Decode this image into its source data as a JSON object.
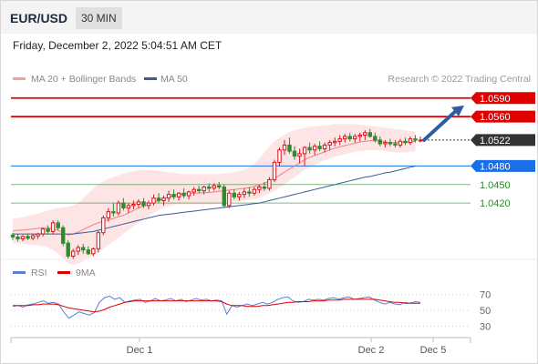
{
  "header": {
    "pair": "EUR/USD",
    "timeframe": "30 MIN"
  },
  "date_line": "Friday, December 2, 2022 5:04:51 AM CET",
  "chart_data": [
    {
      "type": "candlestick",
      "title": "",
      "legend": [
        {
          "name": "MA 20 + Bollinger Bands",
          "color": "#f4a0a0"
        },
        {
          "name": "MA 50",
          "color": "#3b5b9a"
        }
      ],
      "credit": "Research © 2022 Trading Central",
      "xlabels": [
        "Dec 1",
        "Dec 2",
        "Dec 5"
      ],
      "ylim": [
        1.032,
        1.06
      ],
      "levels": [
        {
          "value": "1.0590",
          "color": "#e00000",
          "style": "box"
        },
        {
          "value": "1.0560",
          "color": "#e00000",
          "style": "box"
        },
        {
          "value": "1.0522",
          "color": "#333333",
          "style": "box-current"
        },
        {
          "value": "1.0480",
          "color": "#1a6ee8",
          "style": "box"
        },
        {
          "value": "1.0450",
          "color": "#2e8b2e",
          "style": "text"
        },
        {
          "value": "1.0420",
          "color": "#2e8b2e",
          "style": "text"
        }
      ],
      "current": 1.0522,
      "ma20": [
        1.0375,
        1.0376,
        1.0376,
        1.0377,
        1.0378,
        1.0379,
        1.038,
        1.038,
        1.0378,
        1.0376,
        1.0372,
        1.0368,
        1.037,
        1.0373,
        1.0377,
        1.0381,
        1.0385,
        1.0388,
        1.0391,
        1.0393,
        1.0395,
        1.0398,
        1.04,
        1.0404,
        1.0408,
        1.0412,
        1.0415,
        1.0418,
        1.0421,
        1.0424,
        1.0427,
        1.043,
        1.0433,
        1.0434,
        1.0435,
        1.0436,
        1.0436,
        1.0436,
        1.0437,
        1.0437,
        1.0438,
        1.0439,
        1.044,
        1.0441,
        1.0442,
        1.0443,
        1.0444,
        1.0445,
        1.0447,
        1.0449,
        1.0452,
        1.0456,
        1.046,
        1.0465,
        1.047,
        1.0475,
        1.048,
        1.0485,
        1.049,
        1.0494,
        1.0497,
        1.05,
        1.0503,
        1.0506,
        1.0509,
        1.0511,
        1.0513,
        1.0515,
        1.0517,
        1.0519,
        1.052,
        1.0521,
        1.0521,
        1.052,
        1.0519,
        1.0518,
        1.0518,
        1.0518,
        1.0518,
        1.0519,
        1.052
      ],
      "ma50": [
        1.037,
        1.037,
        1.037,
        1.037,
        1.037,
        1.037,
        1.037,
        1.037,
        1.037,
        1.037,
        1.037,
        1.037,
        1.037,
        1.0371,
        1.0372,
        1.0373,
        1.0374,
        1.0376,
        1.0378,
        1.038,
        1.0382,
        1.0384,
        1.0386,
        1.0388,
        1.039,
        1.0392,
        1.0394,
        1.0396,
        1.0398,
        1.04,
        1.0401,
        1.0402,
        1.0403,
        1.0404,
        1.0405,
        1.0406,
        1.0407,
        1.0408,
        1.0409,
        1.041,
        1.0411,
        1.0412,
        1.0413,
        1.0414,
        1.0415,
        1.0416,
        1.0417,
        1.0418,
        1.0419,
        1.042,
        1.0422,
        1.0424,
        1.0426,
        1.0428,
        1.043,
        1.0432,
        1.0434,
        1.0436,
        1.0438,
        1.044,
        1.0442,
        1.0444,
        1.0446,
        1.0448,
        1.045,
        1.0452,
        1.0454,
        1.0456,
        1.0458,
        1.046,
        1.0462,
        1.0463,
        1.0465,
        1.0467,
        1.0469,
        1.047,
        1.0472,
        1.0474,
        1.0476,
        1.0478,
        1.048
      ],
      "bb_upper": [
        1.0395,
        1.0396,
        1.0397,
        1.0399,
        1.0401,
        1.0403,
        1.0405,
        1.0408,
        1.041,
        1.0412,
        1.0413,
        1.0414,
        1.0416,
        1.042,
        1.0428,
        1.0436,
        1.0444,
        1.045,
        1.0455,
        1.0459,
        1.0462,
        1.0465,
        1.0468,
        1.047,
        1.0472,
        1.0473,
        1.0474,
        1.0474,
        1.0473,
        1.0472,
        1.0471,
        1.047,
        1.0469,
        1.0468,
        1.0467,
        1.0467,
        1.0467,
        1.0467,
        1.0467,
        1.0467,
        1.0467,
        1.0467,
        1.0468,
        1.0469,
        1.047,
        1.0472,
        1.0474,
        1.0477,
        1.0483,
        1.0492,
        1.0502,
        1.0512,
        1.052,
        1.0526,
        1.0531,
        1.0535,
        1.0538,
        1.054,
        1.0542,
        1.0543,
        1.0544,
        1.0545,
        1.0546,
        1.0547,
        1.0548,
        1.0548,
        1.0548,
        1.0548,
        1.0548,
        1.0547,
        1.0546,
        1.0545,
        1.0544,
        1.0543,
        1.0542,
        1.0541,
        1.054,
        1.0539,
        1.0538,
        1.0537,
        1.0536
      ],
      "bb_lower": [
        1.0355,
        1.0355,
        1.0354,
        1.0353,
        1.0352,
        1.0351,
        1.035,
        1.0348,
        1.0344,
        1.0338,
        1.033,
        1.0322,
        1.032,
        1.0322,
        1.0326,
        1.033,
        1.0335,
        1.034,
        1.0346,
        1.0352,
        1.0358,
        1.0364,
        1.037,
        1.0376,
        1.0382,
        1.0388,
        1.0394,
        1.0399,
        1.0404,
        1.0408,
        1.0412,
        1.0415,
        1.0417,
        1.0418,
        1.0418,
        1.0418,
        1.0418,
        1.0418,
        1.0418,
        1.0418,
        1.0418,
        1.0419,
        1.042,
        1.0421,
        1.0422,
        1.0423,
        1.0424,
        1.0425,
        1.0426,
        1.0428,
        1.0432,
        1.0436,
        1.044,
        1.0445,
        1.045,
        1.0456,
        1.0462,
        1.0468,
        1.0474,
        1.0478,
        1.0482,
        1.0486,
        1.0489,
        1.0492,
        1.0495,
        1.0497,
        1.0499,
        1.0501,
        1.0503,
        1.0504,
        1.0505,
        1.0506,
        1.0506,
        1.0505,
        1.0504,
        1.0503,
        1.0502,
        1.0502,
        1.0502,
        1.0503,
        1.0504
      ],
      "candles": [
        [
          1.0368,
          1.0372,
          1.036,
          1.0365
        ],
        [
          1.0365,
          1.037,
          1.0358,
          1.0362
        ],
        [
          1.0362,
          1.0368,
          1.0358,
          1.0366
        ],
        [
          1.0366,
          1.0371,
          1.036,
          1.0363
        ],
        [
          1.0363,
          1.0369,
          1.036,
          1.0367
        ],
        [
          1.0367,
          1.0372,
          1.0362,
          1.037
        ],
        [
          1.037,
          1.038,
          1.0366,
          1.0378
        ],
        [
          1.0378,
          1.0384,
          1.037,
          1.0374
        ],
        [
          1.0374,
          1.0392,
          1.037,
          1.0388
        ],
        [
          1.0388,
          1.0392,
          1.0376,
          1.038
        ],
        [
          1.038,
          1.0384,
          1.035,
          1.0355
        ],
        [
          1.0355,
          1.036,
          1.033,
          1.0334
        ],
        [
          1.0334,
          1.0346,
          1.0328,
          1.0342
        ],
        [
          1.0342,
          1.0352,
          1.0336,
          1.0348
        ],
        [
          1.0348,
          1.0354,
          1.0338,
          1.0344
        ],
        [
          1.0344,
          1.035,
          1.0336,
          1.0338
        ],
        [
          1.0338,
          1.0348,
          1.0334,
          1.0346
        ],
        [
          1.0346,
          1.0375,
          1.034,
          1.0372
        ],
        [
          1.0372,
          1.04,
          1.0368,
          1.0396
        ],
        [
          1.0396,
          1.0412,
          1.039,
          1.0406
        ],
        [
          1.0406,
          1.042,
          1.0398,
          1.0404
        ],
        [
          1.0404,
          1.0424,
          1.04,
          1.042
        ],
        [
          1.042,
          1.0428,
          1.0408,
          1.0412
        ],
        [
          1.0412,
          1.042,
          1.0404,
          1.0416
        ],
        [
          1.0416,
          1.0424,
          1.041,
          1.0418
        ],
        [
          1.0418,
          1.0426,
          1.0412,
          1.0422
        ],
        [
          1.0422,
          1.0428,
          1.0412,
          1.0416
        ],
        [
          1.0416,
          1.0424,
          1.041,
          1.042
        ],
        [
          1.042,
          1.0434,
          1.0416,
          1.0428
        ],
        [
          1.0428,
          1.0436,
          1.042,
          1.0424
        ],
        [
          1.0424,
          1.0432,
          1.0416,
          1.0428
        ],
        [
          1.0428,
          1.044,
          1.0422,
          1.0434
        ],
        [
          1.0434,
          1.0442,
          1.0426,
          1.043
        ],
        [
          1.043,
          1.0438,
          1.0424,
          1.0436
        ],
        [
          1.0436,
          1.0444,
          1.0428,
          1.0432
        ],
        [
          1.0432,
          1.044,
          1.0426,
          1.0438
        ],
        [
          1.0438,
          1.0446,
          1.0432,
          1.0442
        ],
        [
          1.0442,
          1.0448,
          1.0436,
          1.044
        ],
        [
          1.044,
          1.0448,
          1.0434,
          1.0446
        ],
        [
          1.0446,
          1.0452,
          1.0438,
          1.0444
        ],
        [
          1.0444,
          1.0452,
          1.044,
          1.0448
        ],
        [
          1.0448,
          1.0454,
          1.0442,
          1.0446
        ],
        [
          1.0446,
          1.045,
          1.0412,
          1.0416
        ],
        [
          1.0416,
          1.044,
          1.0412,
          1.0436
        ],
        [
          1.0436,
          1.0442,
          1.0426,
          1.043
        ],
        [
          1.043,
          1.0438,
          1.0424,
          1.0434
        ],
        [
          1.0434,
          1.0444,
          1.0428,
          1.0438
        ],
        [
          1.0438,
          1.0446,
          1.043,
          1.0436
        ],
        [
          1.0436,
          1.0446,
          1.0432,
          1.0442
        ],
        [
          1.0442,
          1.045,
          1.0436,
          1.0446
        ],
        [
          1.0446,
          1.0454,
          1.044,
          1.0444
        ],
        [
          1.0444,
          1.0462,
          1.044,
          1.0458
        ],
        [
          1.0458,
          1.049,
          1.0454,
          1.0486
        ],
        [
          1.0486,
          1.051,
          1.048,
          1.0506
        ],
        [
          1.0506,
          1.0522,
          1.0498,
          1.0514
        ],
        [
          1.0514,
          1.0526,
          1.05,
          1.0504
        ],
        [
          1.0504,
          1.0512,
          1.049,
          1.0496
        ],
        [
          1.0496,
          1.0508,
          1.0484,
          1.05
        ],
        [
          1.05,
          1.0512,
          1.048,
          1.051
        ],
        [
          1.051,
          1.0518,
          1.05,
          1.0506
        ],
        [
          1.0506,
          1.0516,
          1.0498,
          1.0512
        ],
        [
          1.0512,
          1.052,
          1.0504,
          1.0508
        ],
        [
          1.0508,
          1.0518,
          1.0502,
          1.0514
        ],
        [
          1.0514,
          1.0522,
          1.0506,
          1.0518
        ],
        [
          1.0518,
          1.0526,
          1.0512,
          1.052
        ],
        [
          1.052,
          1.053,
          1.0514,
          1.0524
        ],
        [
          1.0524,
          1.0532,
          1.0518,
          1.0528
        ],
        [
          1.0528,
          1.0534,
          1.052,
          1.0524
        ],
        [
          1.0524,
          1.0532,
          1.0518,
          1.0528
        ],
        [
          1.0528,
          1.0534,
          1.052,
          1.053
        ],
        [
          1.053,
          1.0538,
          1.0522,
          1.0534
        ],
        [
          1.0534,
          1.054,
          1.0526,
          1.0528
        ],
        [
          1.0528,
          1.0534,
          1.0518,
          1.0522
        ],
        [
          1.0522,
          1.0528,
          1.0512,
          1.0516
        ],
        [
          1.0516,
          1.0522,
          1.051,
          1.0518
        ],
        [
          1.0518,
          1.0524,
          1.0512,
          1.0516
        ],
        [
          1.0516,
          1.0522,
          1.051,
          1.0514
        ],
        [
          1.0514,
          1.0524,
          1.051,
          1.052
        ],
        [
          1.052,
          1.0526,
          1.0514,
          1.0518
        ],
        [
          1.0518,
          1.0528,
          1.0514,
          1.0524
        ],
        [
          1.0524,
          1.053,
          1.0518,
          1.0522
        ],
        [
          1.0522,
          1.0528,
          1.0518,
          1.0522
        ]
      ],
      "forecast_arrow": {
        "from": 1.0522,
        "to": 1.0578
      }
    },
    {
      "type": "line",
      "legend": [
        {
          "name": "RSI",
          "color": "#5b7fd4"
        },
        {
          "name": "9MA",
          "color": "#e00000"
        }
      ],
      "ylim": [
        20,
        80
      ],
      "yticks": [
        70,
        50,
        30
      ],
      "rsi": [
        55,
        56,
        54,
        57,
        58,
        60,
        62,
        59,
        60,
        58,
        48,
        40,
        44,
        48,
        46,
        44,
        47,
        60,
        66,
        68,
        64,
        66,
        60,
        62,
        63,
        64,
        60,
        62,
        65,
        62,
        63,
        65,
        62,
        64,
        61,
        63,
        65,
        63,
        64,
        62,
        63,
        62,
        45,
        56,
        54,
        56,
        58,
        56,
        58,
        60,
        58,
        60,
        64,
        66,
        67,
        62,
        60,
        61,
        64,
        63,
        64,
        63,
        65,
        66,
        64,
        66,
        67,
        64,
        65,
        66,
        67,
        63,
        60,
        58,
        60,
        58,
        57,
        60,
        59,
        61,
        60
      ],
      "ma9": [
        56,
        56,
        56,
        56,
        57,
        57,
        58,
        58,
        58,
        57,
        55,
        53,
        52,
        51,
        50,
        49,
        48,
        49,
        51,
        54,
        56,
        58,
        60,
        61,
        62,
        62,
        62,
        62,
        62,
        62,
        62,
        62,
        62,
        62,
        62,
        62,
        62,
        62,
        62,
        62,
        62,
        61,
        58,
        56,
        56,
        56,
        55,
        55,
        55,
        56,
        56,
        57,
        58,
        59,
        60,
        60,
        61,
        61,
        61,
        62,
        62,
        62,
        63,
        63,
        63,
        64,
        64,
        64,
        64,
        64,
        64,
        64,
        63,
        62,
        61,
        60,
        60,
        59,
        59,
        59,
        59
      ]
    }
  ]
}
